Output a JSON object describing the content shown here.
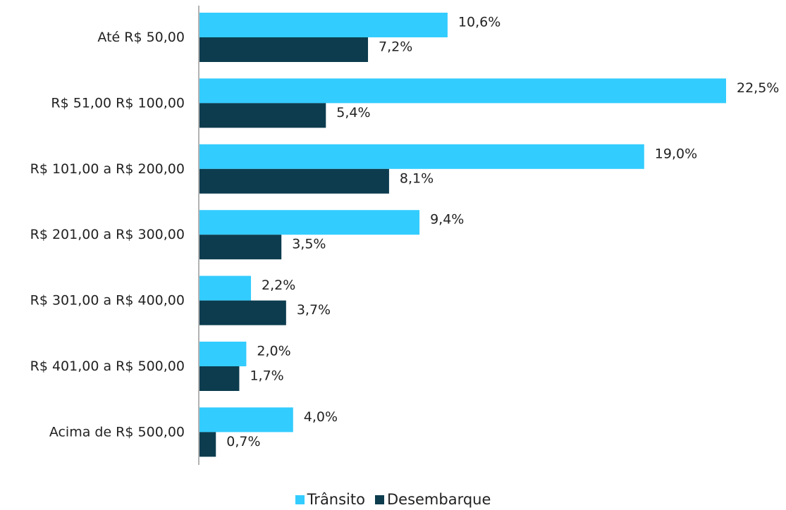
{
  "chart_data": {
    "type": "bar",
    "orientation": "horizontal",
    "categories": [
      "Até R$ 50,00",
      "R$ 51,00 R$ 100,00",
      "R$ 101,00 a R$ 200,00",
      "R$ 201,00 a R$ 300,00",
      "R$ 301,00 a R$ 400,00",
      "R$ 401,00 a R$ 500,00",
      "Acima de R$ 500,00"
    ],
    "series": [
      {
        "name": "Trânsito",
        "color": "#33CCFF",
        "values": [
          10.6,
          22.5,
          19.0,
          9.4,
          2.2,
          2.0,
          4.0
        ],
        "labels": [
          "10,6%",
          "22,5%",
          "19,0%",
          "9,4%",
          "2,2%",
          "2,0%",
          "4,0%"
        ]
      },
      {
        "name": "Desembarque",
        "color": "#0C3C4E",
        "values": [
          7.2,
          5.4,
          8.1,
          3.5,
          3.7,
          1.7,
          0.7
        ],
        "labels": [
          "7,2%",
          "5,4%",
          "8,1%",
          "3,5%",
          "3,7%",
          "1,7%",
          "0,7%"
        ]
      }
    ],
    "xlim": [
      0,
      22.5
    ],
    "unit": "%",
    "grid": false,
    "legend_position": "bottom"
  }
}
